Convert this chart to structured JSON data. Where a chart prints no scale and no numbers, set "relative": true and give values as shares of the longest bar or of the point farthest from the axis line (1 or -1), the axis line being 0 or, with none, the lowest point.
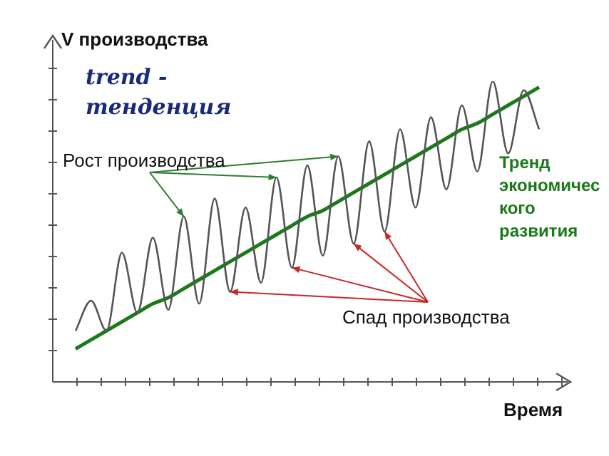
{
  "chart_data": {
    "type": "line",
    "ylabel": "V производства",
    "xlabel": "Время",
    "relative": true,
    "legend": false,
    "marker": "none",
    "categories": [
      null,
      null,
      null,
      null,
      null,
      null,
      null,
      null,
      null,
      null,
      null,
      null,
      null,
      null,
      null,
      null,
      null,
      null,
      null,
      null,
      null,
      null,
      null,
      null,
      null,
      null,
      null,
      null,
      null,
      null,
      null
    ],
    "series": [
      {
        "color": "#555555",
        "values": [
          0.17,
          0.27,
          0.17,
          0.43,
          0.23,
          0.48,
          0.24,
          0.55,
          0.26,
          0.61,
          0.3,
          0.58,
          0.33,
          0.68,
          0.38,
          0.72,
          0.42,
          0.75,
          0.46,
          0.8,
          0.5,
          0.84,
          0.58,
          0.88,
          0.64,
          0.92,
          0.7,
          1.0,
          0.76,
          0.97,
          0.84
        ]
      },
      {
        "name": "Тренд экономического развития",
        "color": "#1a7a1a",
        "values": [
          0.11,
          0.14,
          0.17,
          0.2,
          0.23,
          0.26,
          0.28,
          0.31,
          0.34,
          0.37,
          0.4,
          0.43,
          0.46,
          0.49,
          0.52,
          0.55,
          0.57,
          0.6,
          0.63,
          0.66,
          0.69,
          0.72,
          0.75,
          0.78,
          0.81,
          0.84,
          0.86,
          0.89,
          0.92,
          0.95,
          0.98
        ]
      }
    ],
    "annotations": [
      "trend - тенденция",
      "Рост производства",
      "Спад производства"
    ]
  }
}
